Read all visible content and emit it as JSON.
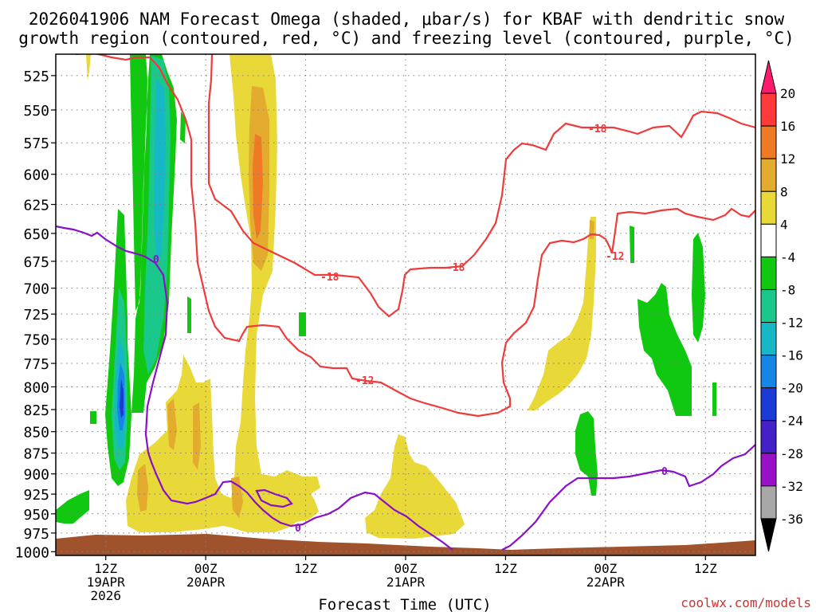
{
  "title_line1": "2026041906 NAM Forecast Omega (shaded, μbar/s) for KBAF with dendritic snow",
  "title_line2": "growth region (contoured, red, °C) and freezing level (contoured, purple, °C)",
  "credit": "coolwx.com/models",
  "chart_data": {
    "type": "contour",
    "title": "2026041906 NAM Forecast Omega (shaded, μbar/s) for KBAF with dendritic snow growth region (contoured, red, °C) and freezing level (contoured, purple, °C)",
    "xlabel": "Forecast Time (UTC)",
    "ylabel": "",
    "y_axis": {
      "reversed": true,
      "ticks": [
        525,
        550,
        575,
        600,
        625,
        650,
        675,
        700,
        725,
        750,
        775,
        800,
        825,
        850,
        875,
        900,
        925,
        950,
        975,
        1000
      ]
    },
    "x_axis": {
      "range_hours": [
        0,
        84
      ],
      "ticks": [
        {
          "hour": 6,
          "line1": "12Z",
          "line2": "19APR",
          "line3": "2026"
        },
        {
          "hour": 18,
          "line1": "00Z",
          "line2": "20APR",
          "line3": ""
        },
        {
          "hour": 30,
          "line1": "12Z",
          "line2": "",
          "line3": ""
        },
        {
          "hour": 42,
          "line1": "00Z",
          "line2": "21APR",
          "line3": ""
        },
        {
          "hour": 54,
          "line1": "12Z",
          "line2": "",
          "line3": ""
        },
        {
          "hour": 66,
          "line1": "00Z",
          "line2": "22APR",
          "line3": ""
        },
        {
          "hour": 78,
          "line1": "12Z",
          "line2": "",
          "line3": ""
        }
      ]
    },
    "grid": true,
    "colorbar": {
      "levels": [
        "20",
        "16",
        "12",
        "8",
        "4",
        "-4",
        "-8",
        "-12",
        "-16",
        "-20",
        "-24",
        "-28",
        "-32",
        "-36"
      ],
      "colors": [
        "#ff1a6e",
        "#ff3a3a",
        "#ef7a26",
        "#e3ac2e",
        "#e8d838",
        "#ffffff",
        "#10c810",
        "#19c88a",
        "#16b8c6",
        "#1686e6",
        "#1c3ad6",
        "#4420c8",
        "#9a10c8",
        "#a8a8a8",
        "#000000"
      ]
    },
    "shading_colors": {
      "positive_4_8": "#e8d838",
      "positive_8_12": "#e3ac2e",
      "positive_12_16": "#ef7a26",
      "negative_4_8": "#10c810",
      "negative_8_12": "#19c88a",
      "negative_12_16": "#16b8c6",
      "negative_16_20": "#1686e6",
      "negative_20_24": "#1c3ad6",
      "terrain": "#a0522d"
    },
    "contours": [
      {
        "name": "dendritic -12",
        "color": "#ee3b3b",
        "labels": [
          "-12",
          "-12"
        ]
      },
      {
        "name": "dendritic -18",
        "color": "#ee3b3b",
        "labels": [
          "-18",
          "-18",
          "-18"
        ]
      },
      {
        "name": "freezing level 0",
        "color": "#8a10c8",
        "labels": [
          "0",
          "0",
          "0"
        ]
      }
    ]
  }
}
